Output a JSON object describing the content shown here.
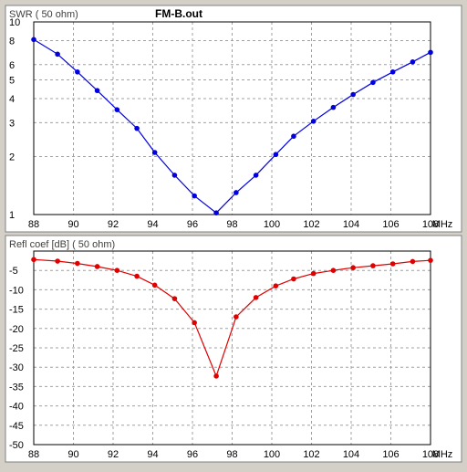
{
  "title": "FM-B.out",
  "x_unit": "MHz",
  "colors": {
    "background": "#d4d0c8",
    "plot_bg": "#ffffff",
    "grid": "#a0a0a0",
    "swr_series": "#0000e0",
    "refl_series": "#e00000",
    "text": "#000000",
    "axis_label": "#404040"
  },
  "chart_data": [
    {
      "type": "line",
      "ylabel": "SWR ( 50 ohm)",
      "xlim": [
        88,
        108
      ],
      "ylim": [
        1,
        10
      ],
      "y_scale": "log",
      "grid": true,
      "x_ticks": [
        "88",
        "90",
        "92",
        "94",
        "96",
        "98",
        "100",
        "102",
        "104",
        "106",
        "108"
      ],
      "y_ticks": [
        "1",
        "2",
        "3",
        "4",
        "5",
        "6",
        "8",
        "10"
      ],
      "series": [
        {
          "x": [
            88,
            89.2,
            90.2,
            91.2,
            92.2,
            93.2,
            94.1,
            95.1,
            96.1,
            97.2,
            98.2,
            99.2,
            100.2,
            101.1,
            102.1,
            103.1,
            104.1,
            105.1,
            106.1,
            107.1,
            108
          ],
          "y": [
            8.1,
            6.8,
            5.5,
            4.4,
            3.5,
            2.8,
            2.1,
            1.6,
            1.25,
            1.02,
            1.3,
            1.6,
            2.05,
            2.55,
            3.05,
            3.6,
            4.2,
            4.85,
            5.5,
            6.2,
            6.95
          ]
        }
      ]
    },
    {
      "type": "line",
      "ylabel": "Refl coef [dB] ( 50 ohm)",
      "xlim": [
        88,
        108
      ],
      "ylim": [
        -50,
        0
      ],
      "grid": true,
      "x_ticks": [
        "88",
        "90",
        "92",
        "94",
        "96",
        "98",
        "100",
        "102",
        "104",
        "106",
        "108"
      ],
      "y_ticks": [
        "-5",
        "-10",
        "-15",
        "-20",
        "-25",
        "-30",
        "-35",
        "-40",
        "-45",
        "-50"
      ],
      "series": [
        {
          "x": [
            88,
            89.2,
            90.2,
            91.2,
            92.2,
            93.2,
            94.1,
            95.1,
            96.1,
            97.2,
            98.2,
            99.2,
            100.2,
            101.1,
            102.1,
            103.1,
            104.1,
            105.1,
            106.1,
            107.1,
            108
          ],
          "y": [
            -2.2,
            -2.6,
            -3.2,
            -4.0,
            -5.0,
            -6.5,
            -8.8,
            -12.3,
            -18.5,
            -32.3,
            -17.0,
            -12.0,
            -9.0,
            -7.2,
            -5.8,
            -5.0,
            -4.3,
            -3.8,
            -3.3,
            -2.7,
            -2.4
          ]
        }
      ]
    }
  ]
}
